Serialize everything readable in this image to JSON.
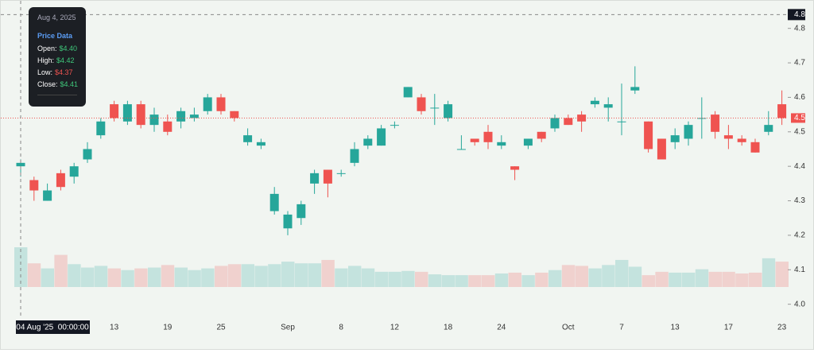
{
  "chart_data": {
    "type": "candlestick",
    "categories": [
      null,
      null,
      null,
      null,
      null,
      null,
      null,
      "13",
      null,
      null,
      null,
      "19",
      null,
      null,
      null,
      "25",
      null,
      null,
      null,
      null,
      "Sep",
      null,
      null,
      null,
      "8",
      null,
      null,
      null,
      "12",
      null,
      null,
      null,
      "18",
      null,
      null,
      null,
      "24",
      null,
      null,
      null,
      null,
      "Oct",
      null,
      null,
      null,
      "7",
      null,
      null,
      null,
      "13",
      null,
      null,
      null,
      "17",
      null,
      null,
      null,
      "23"
    ],
    "open": [
      4.4,
      4.36,
      4.3,
      4.38,
      4.37,
      4.42,
      4.49,
      4.58,
      4.53,
      4.58,
      4.52,
      4.53,
      4.53,
      4.54,
      4.56,
      4.6,
      4.56,
      4.47,
      4.46,
      4.27,
      4.22,
      4.25,
      4.35,
      4.39,
      4.38,
      4.41,
      4.46,
      4.46,
      4.52,
      4.6,
      4.6,
      4.57,
      4.54,
      4.45,
      4.48,
      4.5,
      4.46,
      4.4,
      4.46,
      4.5,
      4.51,
      4.54,
      4.55,
      4.58,
      4.57,
      4.53,
      4.62,
      4.53,
      4.48,
      4.47,
      4.48,
      4.54,
      4.55,
      4.49,
      4.48,
      4.47,
      4.5,
      4.58
    ],
    "high": [
      4.42,
      4.37,
      4.35,
      4.39,
      4.41,
      4.47,
      4.54,
      4.59,
      4.59,
      4.59,
      4.57,
      4.55,
      4.57,
      4.57,
      4.61,
      4.61,
      4.56,
      4.51,
      4.48,
      4.34,
      4.27,
      4.3,
      4.39,
      4.39,
      4.39,
      4.47,
      4.49,
      4.52,
      4.53,
      4.63,
      4.61,
      4.61,
      4.59,
      4.49,
      4.48,
      4.52,
      4.49,
      4.4,
      4.48,
      4.5,
      4.55,
      4.55,
      4.56,
      4.6,
      4.6,
      4.64,
      4.69,
      4.53,
      4.48,
      4.51,
      4.53,
      4.6,
      4.56,
      4.52,
      4.49,
      4.48,
      4.56,
      4.62
    ],
    "low": [
      4.37,
      4.3,
      4.3,
      4.33,
      4.35,
      4.41,
      4.48,
      4.53,
      4.52,
      4.51,
      4.5,
      4.49,
      4.51,
      4.53,
      4.55,
      4.55,
      4.53,
      4.46,
      4.45,
      4.26,
      4.2,
      4.23,
      4.32,
      4.31,
      4.37,
      4.4,
      4.45,
      4.46,
      4.51,
      4.6,
      4.55,
      4.52,
      4.53,
      4.45,
      4.46,
      4.45,
      4.45,
      4.36,
      4.45,
      4.47,
      4.5,
      4.52,
      4.5,
      4.57,
      4.53,
      4.49,
      4.61,
      4.44,
      4.42,
      4.45,
      4.46,
      4.48,
      4.48,
      4.45,
      4.46,
      4.44,
      4.49,
      4.52
    ],
    "close": [
      4.41,
      4.33,
      4.33,
      4.34,
      4.4,
      4.45,
      4.53,
      4.54,
      4.58,
      4.52,
      4.55,
      4.5,
      4.56,
      4.55,
      4.6,
      4.56,
      4.54,
      4.49,
      4.47,
      4.32,
      4.26,
      4.29,
      4.38,
      4.35,
      4.38,
      4.45,
      4.48,
      4.51,
      4.52,
      4.63,
      4.56,
      4.57,
      4.58,
      4.45,
      4.47,
      4.47,
      4.47,
      4.39,
      4.48,
      4.48,
      4.54,
      4.52,
      4.53,
      4.59,
      4.58,
      4.53,
      4.63,
      4.45,
      4.42,
      4.49,
      4.52,
      4.54,
      4.5,
      4.48,
      4.47,
      4.44,
      4.52,
      4.54
    ],
    "volume": [
      47,
      28,
      22,
      38,
      27,
      23,
      25,
      22,
      20,
      22,
      23,
      26,
      23,
      20,
      22,
      25,
      27,
      27,
      25,
      27,
      30,
      28,
      28,
      32,
      22,
      25,
      22,
      18,
      18,
      19,
      18,
      15,
      14,
      14,
      14,
      14,
      16,
      17,
      14,
      17,
      20,
      26,
      25,
      22,
      26,
      32,
      24,
      14,
      18,
      17,
      17,
      21,
      18,
      18,
      16,
      17,
      34,
      30
    ],
    "up_color": "#26a69a",
    "down_color": "#ef5350",
    "ylim": [
      3.96,
      4.88
    ],
    "yticks": [
      {
        "value": 4,
        "label": "4.0"
      },
      4.1,
      4.2,
      4.3,
      4.4,
      4.5,
      4.6,
      4.7,
      4.8
    ],
    "last_price": {
      "value": 4.54,
      "label": "4.5"
    },
    "crosshair": {
      "price": 4.84,
      "price_label": "4.8",
      "time_label": "04 Aug '25  00:00:00"
    },
    "tooltip": {
      "date": "Aug 4, 2025",
      "heading": "Price Data",
      "rows": [
        {
          "label": "Open:",
          "value": "$4.40"
        },
        {
          "label": "High:",
          "value": "$4.42"
        },
        {
          "label": "Low:",
          "value": "$4.37"
        },
        {
          "label": "Close:",
          "value": "$4.41"
        }
      ]
    }
  }
}
